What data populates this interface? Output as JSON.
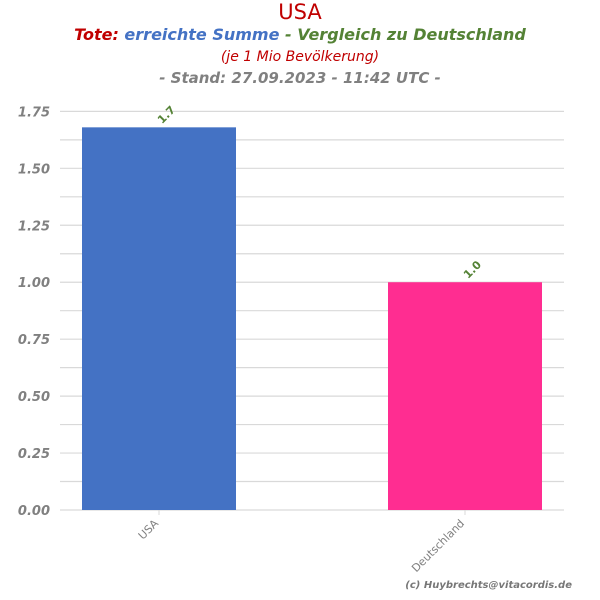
{
  "colors": {
    "title": "#c00000",
    "tote": "#c00000",
    "summe": "#4472c4",
    "vergleich": "#548235",
    "tick_label": "#808080",
    "grid": "#d9d9d9",
    "data_label": "#548235"
  },
  "header": {
    "title": "USA",
    "subtitle_part1": "Tote:",
    "subtitle_part2": " erreichte Summe",
    "subtitle_part3": " - Vergleich zu Deutschland",
    "subtitle_line2": "(je 1 Mio Bevölkerung)",
    "subtitle_line3": "- Stand: 27.09.2023 - 11:42 UTC -"
  },
  "credit": "(c) Huybrechts@vitacordis.de",
  "chart_data": {
    "type": "bar",
    "categories": [
      "USA",
      "Deutschland"
    ],
    "values": [
      1.68,
      1.0
    ],
    "data_labels": [
      "1.7",
      "1.0"
    ],
    "bar_colors": [
      "#4472c4",
      "#ff2d91"
    ],
    "ylim": [
      0,
      1.8
    ],
    "yticks": [
      0,
      0.25,
      0.5,
      0.75,
      1.0,
      1.25,
      1.5,
      1.75
    ],
    "ytick_labels": [
      "0.00",
      "0.25",
      "0.50",
      "0.75",
      "1.00",
      "1.25",
      "1.50",
      "1.75"
    ],
    "grid": true,
    "legend": "none"
  }
}
